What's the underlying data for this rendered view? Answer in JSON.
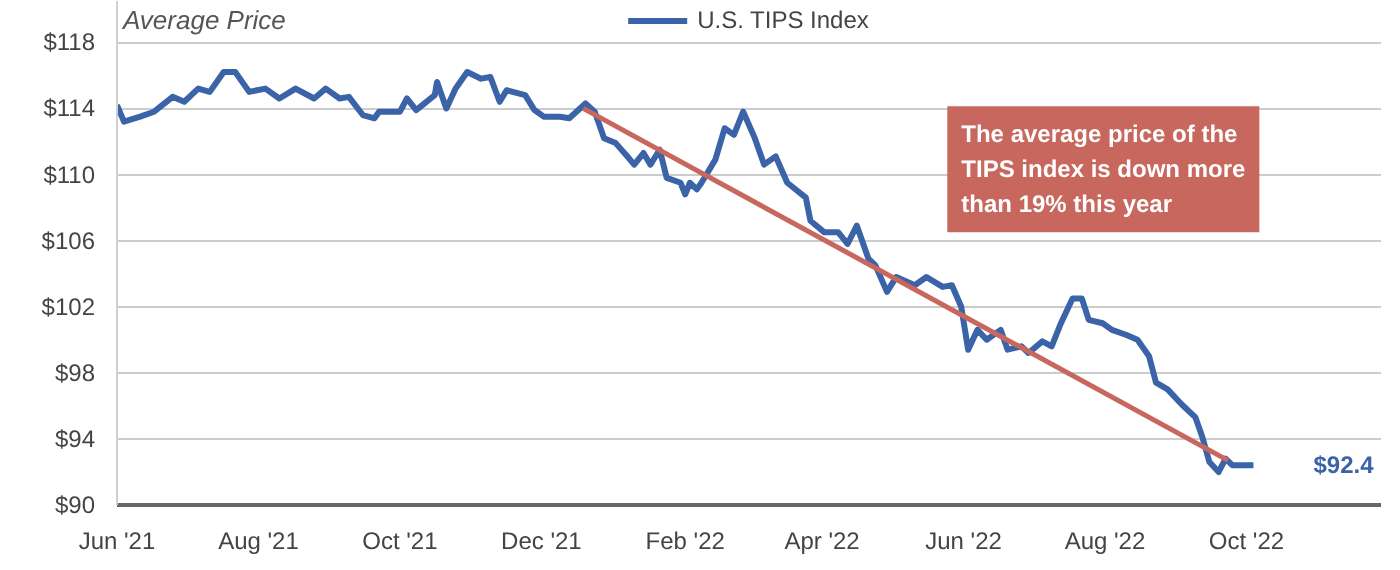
{
  "chart_data": {
    "type": "line",
    "ylabel": "Average Price",
    "x": [
      "2021-06-01",
      "2021-06-04",
      "2021-06-11",
      "2021-06-17",
      "2021-06-25",
      "2021-06-30",
      "2021-07-06",
      "2021-07-11",
      "2021-07-17",
      "2021-07-22",
      "2021-07-28",
      "2021-08-04",
      "2021-08-10",
      "2021-08-17",
      "2021-08-25",
      "2021-08-30",
      "2021-09-05",
      "2021-09-09",
      "2021-09-15",
      "2021-09-20",
      "2021-09-22",
      "2021-10-01",
      "2021-10-04",
      "2021-10-08",
      "2021-10-16",
      "2021-10-17",
      "2021-10-21",
      "2021-10-25",
      "2021-10-30",
      "2021-11-05",
      "2021-11-09",
      "2021-11-13",
      "2021-11-16",
      "2021-11-24",
      "2021-11-28",
      "2021-12-02",
      "2021-12-09",
      "2021-12-13",
      "2021-12-20",
      "2021-12-24",
      "2021-12-28",
      "2022-01-02",
      "2022-01-07",
      "2022-01-10",
      "2022-01-14",
      "2022-01-17",
      "2022-01-21",
      "2022-01-24",
      "2022-01-30",
      "2022-02-01",
      "2022-02-03",
      "2022-02-06",
      "2022-02-08",
      "2022-02-14",
      "2022-02-18",
      "2022-02-22",
      "2022-02-26",
      "2022-03-03",
      "2022-03-07",
      "2022-03-12",
      "2022-03-17",
      "2022-03-25",
      "2022-03-27",
      "2022-04-02",
      "2022-04-08",
      "2022-04-12",
      "2022-04-16",
      "2022-04-21",
      "2022-04-24",
      "2022-04-29",
      "2022-05-03",
      "2022-05-11",
      "2022-05-16",
      "2022-05-23",
      "2022-05-27",
      "2022-05-31",
      "2022-06-03",
      "2022-06-07",
      "2022-06-11",
      "2022-06-17",
      "2022-06-20",
      "2022-06-26",
      "2022-06-29",
      "2022-07-05",
      "2022-07-09",
      "2022-07-13",
      "2022-07-18",
      "2022-07-22",
      "2022-07-25",
      "2022-07-31",
      "2022-08-04",
      "2022-08-10",
      "2022-08-15",
      "2022-08-20",
      "2022-08-23",
      "2022-08-28",
      "2022-09-03",
      "2022-09-09",
      "2022-09-12",
      "2022-09-15",
      "2022-09-19",
      "2022-09-22",
      "2022-09-25",
      "2022-10-04"
    ],
    "series": [
      {
        "name": "U.S. TIPS Index",
        "color": "#3a63a8",
        "values": [
          114.2,
          113.2,
          113.5,
          113.8,
          114.7,
          114.4,
          115.2,
          115.0,
          116.2,
          116.2,
          115.0,
          115.2,
          114.6,
          115.2,
          114.6,
          115.2,
          114.6,
          114.7,
          113.6,
          113.4,
          113.8,
          113.8,
          114.6,
          113.9,
          114.8,
          115.6,
          114.0,
          115.2,
          116.2,
          115.8,
          115.9,
          114.4,
          115.1,
          114.8,
          113.9,
          113.5,
          113.5,
          113.4,
          114.3,
          113.8,
          112.2,
          111.9,
          111.1,
          110.6,
          111.3,
          110.6,
          111.5,
          109.8,
          109.5,
          108.8,
          109.5,
          109.1,
          109.5,
          110.9,
          112.8,
          112.4,
          113.8,
          112.2,
          110.6,
          111.1,
          109.5,
          108.6,
          107.2,
          106.5,
          106.5,
          105.8,
          106.9,
          104.9,
          104.5,
          102.9,
          103.8,
          103.3,
          103.8,
          103.2,
          103.3,
          102.0,
          99.4,
          100.6,
          100.0,
          100.6,
          99.4,
          99.6,
          99.2,
          99.9,
          99.6,
          101.0,
          102.5,
          102.5,
          101.2,
          101.0,
          100.6,
          100.3,
          100.0,
          99.0,
          97.4,
          97.0,
          96.1,
          95.3,
          94.1,
          92.6,
          92.0,
          92.8,
          92.4,
          92.4
        ]
      },
      {
        "type": "line",
        "color": "#c8675d",
        "x": [
          "2021-12-19",
          "2022-09-23"
        ],
        "values": [
          114.0,
          92.7
        ]
      }
    ],
    "xlim": [
      "2021-06-01",
      "2022-11-28"
    ],
    "xticks": [
      {
        "value": "2021-06-01",
        "label": "Jun '21"
      },
      {
        "value": "2021-08-01",
        "label": "Aug '21"
      },
      {
        "value": "2021-10-01",
        "label": "Oct '21"
      },
      {
        "value": "2021-12-01",
        "label": "Dec '21"
      },
      {
        "value": "2022-02-01",
        "label": "Feb '22"
      },
      {
        "value": "2022-04-01",
        "label": "Apr '22"
      },
      {
        "value": "2022-06-01",
        "label": "Jun '22"
      },
      {
        "value": "2022-08-01",
        "label": "Aug '22"
      },
      {
        "value": "2022-10-01",
        "label": "Oct '22"
      }
    ],
    "ylim": [
      90,
      120.5
    ],
    "yticks": [
      {
        "value": 90,
        "label": "$90"
      },
      {
        "value": 94,
        "label": "$94"
      },
      {
        "value": 98,
        "label": "$98"
      },
      {
        "value": 102,
        "label": "$102"
      },
      {
        "value": 106,
        "label": "$106"
      },
      {
        "value": 110,
        "label": "$110"
      },
      {
        "value": 114,
        "label": "$114"
      },
      {
        "value": 118,
        "label": "$118"
      }
    ],
    "grid": "y",
    "legend": "top",
    "marker": "none",
    "line_style": "solid",
    "annotations": [
      "The average price of the TIPS index is down more than 19% this year",
      {
        "text": "$92.4",
        "x": "2022-10-04",
        "y": 92.4
      }
    ]
  }
}
